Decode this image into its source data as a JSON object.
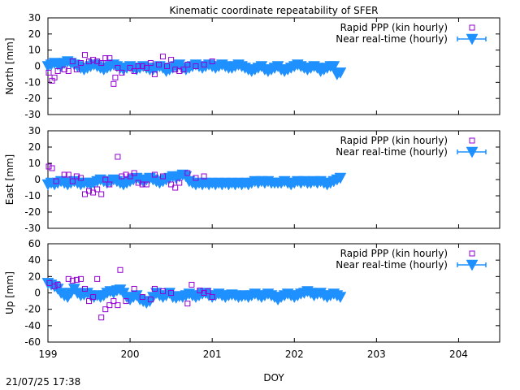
{
  "title": "Kinematic coordinate repeatability of SFER",
  "timestamp": "21/07/25 17:38",
  "xlabel": "DOY",
  "colors": {
    "rapid": "#9400d3",
    "nrt": "#1e90ff"
  },
  "chart_data": [
    {
      "type": "scatter",
      "ylabel": "North [mm]",
      "ylim": [
        -30,
        30
      ],
      "yticks": [
        -30,
        -20,
        -10,
        0,
        10,
        20,
        30
      ],
      "xlim": [
        199,
        204.5
      ],
      "xticks": [
        199,
        200,
        201,
        202,
        203,
        204
      ],
      "legend_position": "top-right",
      "series": [
        {
          "name": "Rapid PPP (kin hourly)",
          "marker": "open-square",
          "x": [
            199.01,
            199.05,
            199.08,
            199.12,
            199.2,
            199.25,
            199.3,
            199.35,
            199.4,
            199.45,
            199.5,
            199.55,
            199.6,
            199.65,
            199.7,
            199.75,
            199.8,
            199.82,
            199.85,
            199.9,
            200.0,
            200.05,
            200.1,
            200.15,
            200.2,
            200.25,
            200.3,
            200.35,
            200.4,
            200.45,
            200.5,
            200.55,
            200.6,
            200.65,
            200.7,
            200.8,
            200.9,
            201.0
          ],
          "y": [
            -4,
            -9,
            -7,
            -3,
            -2,
            -3,
            3,
            -2,
            2,
            7,
            3,
            4,
            3,
            2,
            5,
            5,
            -11,
            -7,
            -1,
            -4,
            -1,
            -3,
            0,
            0,
            -1,
            2,
            -5,
            1,
            6,
            0,
            4,
            -2,
            -3,
            -2,
            1,
            0,
            1,
            3
          ]
        },
        {
          "name": "Near real-time (hourly)",
          "marker": "filled-triangle-down",
          "x": [
            199.0,
            199.04,
            199.08,
            199.12,
            199.16,
            199.2,
            199.24,
            199.28,
            199.32,
            199.36,
            199.4,
            199.44,
            199.48,
            199.52,
            199.56,
            199.6,
            199.64,
            199.68,
            199.72,
            199.76,
            199.8,
            199.84,
            199.88,
            199.92,
            199.96,
            200.0,
            200.04,
            200.08,
            200.12,
            200.16,
            200.2,
            200.24,
            200.28,
            200.32,
            200.36,
            200.4,
            200.44,
            200.48,
            200.52,
            200.56,
            200.6,
            200.64,
            200.68,
            200.72,
            200.76,
            200.8,
            200.84,
            200.88,
            200.92,
            200.96,
            201.0,
            201.04,
            201.08,
            201.12,
            201.16,
            201.2,
            201.24,
            201.28,
            201.32,
            201.36,
            201.4,
            201.44,
            201.48,
            201.52,
            201.56,
            201.6,
            201.64,
            201.68,
            201.72,
            201.76,
            201.8,
            201.84,
            201.88,
            201.92,
            201.96,
            202.0,
            202.04,
            202.08,
            202.12,
            202.16,
            202.2,
            202.24,
            202.28,
            202.32,
            202.36,
            202.4,
            202.44,
            202.48,
            202.52,
            202.56
          ],
          "y": [
            0,
            1,
            2,
            1,
            0,
            2,
            3,
            2,
            1,
            0,
            -1,
            -2,
            -1,
            0,
            1,
            0,
            -1,
            -2,
            -1,
            0,
            1,
            0,
            -1,
            -2,
            -1,
            0,
            -1,
            -2,
            -1,
            0,
            -1,
            -2,
            -2,
            -1,
            0,
            -1,
            -3,
            -2,
            -1,
            0,
            1,
            -1,
            -2,
            -1,
            0,
            1,
            0,
            -1,
            0,
            1,
            0,
            -1,
            0,
            1,
            0,
            -1,
            -1,
            0,
            1,
            0,
            -1,
            -2,
            -3,
            -2,
            -1,
            0,
            -2,
            -3,
            -2,
            -1,
            0,
            -2,
            -3,
            -2,
            -1,
            0,
            1,
            0,
            -1,
            -2,
            -1,
            0,
            -1,
            -3,
            -2,
            -1,
            0,
            0,
            -5,
            -4
          ]
        }
      ]
    },
    {
      "type": "scatter",
      "ylabel": "East [mm]",
      "ylim": [
        -30,
        30
      ],
      "yticks": [
        -30,
        -20,
        -10,
        0,
        10,
        20,
        30
      ],
      "xlim": [
        199,
        204.5
      ],
      "xticks": [
        199,
        200,
        201,
        202,
        203,
        204
      ],
      "legend_position": "top-right",
      "series": [
        {
          "name": "Rapid PPP (kin hourly)",
          "marker": "open-square",
          "x": [
            199.01,
            199.05,
            199.1,
            199.2,
            199.25,
            199.3,
            199.35,
            199.4,
            199.45,
            199.5,
            199.55,
            199.6,
            199.65,
            199.7,
            199.75,
            199.85,
            199.9,
            199.95,
            200.0,
            200.05,
            200.1,
            200.15,
            200.2,
            200.3,
            200.4,
            200.5,
            200.55,
            200.6,
            200.7,
            200.8,
            200.9
          ],
          "y": [
            8,
            7,
            -1,
            3,
            3,
            -1,
            2,
            1,
            -9,
            -7,
            -8,
            -6,
            -9,
            0,
            -3,
            14,
            2,
            3,
            2,
            4,
            -2,
            -3,
            -3,
            3,
            2,
            -3,
            -5,
            -2,
            4,
            1,
            2
          ]
        },
        {
          "name": "Near real-time (hourly)",
          "marker": "filled-triangle-down",
          "x": [
            199.0,
            199.04,
            199.08,
            199.12,
            199.16,
            199.2,
            199.24,
            199.28,
            199.32,
            199.36,
            199.4,
            199.44,
            199.48,
            199.52,
            199.56,
            199.6,
            199.64,
            199.68,
            199.72,
            199.76,
            199.8,
            199.84,
            199.88,
            199.92,
            199.96,
            200.0,
            200.04,
            200.08,
            200.12,
            200.16,
            200.2,
            200.24,
            200.28,
            200.32,
            200.36,
            200.4,
            200.44,
            200.48,
            200.52,
            200.56,
            200.6,
            200.64,
            200.68,
            200.72,
            200.76,
            200.8,
            200.84,
            200.88,
            200.92,
            200.96,
            201.0,
            201.04,
            201.08,
            201.12,
            201.16,
            201.2,
            201.24,
            201.28,
            201.32,
            201.36,
            201.4,
            201.44,
            201.48,
            201.52,
            201.56,
            201.6,
            201.64,
            201.68,
            201.72,
            201.76,
            201.8,
            201.84,
            201.88,
            201.92,
            201.96,
            202.0,
            202.04,
            202.08,
            202.12,
            202.16,
            202.2,
            202.24,
            202.28,
            202.32,
            202.36,
            202.4,
            202.44,
            202.48,
            202.52,
            202.56
          ],
          "y": [
            -3,
            -2,
            -3,
            -2,
            -1,
            -2,
            -3,
            -2,
            -1,
            -2,
            -3,
            -2,
            -2,
            -3,
            -2,
            -1,
            0,
            -1,
            -2,
            -1,
            0,
            -1,
            -2,
            -3,
            -2,
            -1,
            0,
            1,
            0,
            -1,
            0,
            1,
            0,
            -1,
            -2,
            -1,
            0,
            1,
            2,
            1,
            2,
            3,
            2,
            -1,
            -2,
            -3,
            -2,
            -3,
            -2,
            -3,
            -2,
            -3,
            -2,
            -3,
            -2,
            -3,
            -2,
            -3,
            -2,
            -3,
            -2,
            -3,
            -2,
            -1,
            -2,
            -1,
            -2,
            -1,
            -2,
            -2,
            -2,
            -2,
            -1,
            -2,
            -3,
            -2,
            -1,
            -2,
            -1,
            -2,
            -2,
            -1,
            -2,
            -1,
            -2,
            -3,
            -2,
            -1,
            0,
            1
          ]
        }
      ]
    },
    {
      "type": "scatter",
      "ylabel": "Up [mm]",
      "ylim": [
        -60,
        60
      ],
      "yticks": [
        -60,
        -40,
        -20,
        0,
        20,
        40,
        60
      ],
      "xlim": [
        199,
        204.5
      ],
      "xticks": [
        199,
        200,
        201,
        202,
        203,
        204
      ],
      "legend_position": "top-right",
      "series": [
        {
          "name": "Rapid PPP (kin hourly)",
          "marker": "open-square",
          "x": [
            199.02,
            199.08,
            199.12,
            199.25,
            199.3,
            199.35,
            199.4,
            199.45,
            199.5,
            199.55,
            199.6,
            199.65,
            199.7,
            199.75,
            199.8,
            199.85,
            199.88,
            199.95,
            200.05,
            200.15,
            200.25,
            200.3,
            200.4,
            200.5,
            200.7,
            200.75,
            200.85,
            200.9,
            200.95,
            201.0
          ],
          "y": [
            12,
            8,
            10,
            17,
            15,
            16,
            17,
            5,
            -10,
            -5,
            17,
            -30,
            -20,
            -15,
            -10,
            -15,
            28,
            -10,
            5,
            -5,
            -8,
            5,
            2,
            0,
            -13,
            10,
            3,
            0,
            2,
            -5
          ]
        },
        {
          "name": "Near real-time (hourly)",
          "marker": "filled-triangle-down",
          "x": [
            199.0,
            199.04,
            199.08,
            199.12,
            199.16,
            199.2,
            199.24,
            199.28,
            199.32,
            199.36,
            199.4,
            199.44,
            199.48,
            199.52,
            199.56,
            199.6,
            199.64,
            199.68,
            199.72,
            199.76,
            199.8,
            199.84,
            199.88,
            199.92,
            199.96,
            200.0,
            200.04,
            200.08,
            200.12,
            200.16,
            200.2,
            200.24,
            200.28,
            200.32,
            200.36,
            200.4,
            200.44,
            200.48,
            200.52,
            200.56,
            200.6,
            200.64,
            200.68,
            200.72,
            200.76,
            200.8,
            200.84,
            200.88,
            200.92,
            200.96,
            201.0,
            201.04,
            201.08,
            201.12,
            201.16,
            201.2,
            201.24,
            201.28,
            201.32,
            201.36,
            201.4,
            201.44,
            201.48,
            201.52,
            201.56,
            201.6,
            201.64,
            201.68,
            201.72,
            201.76,
            201.8,
            201.84,
            201.88,
            201.92,
            201.96,
            202.0,
            202.04,
            202.08,
            202.12,
            202.16,
            202.2,
            202.24,
            202.28,
            202.32,
            202.36,
            202.4,
            202.44,
            202.48,
            202.52,
            202.56
          ],
          "y": [
            12,
            10,
            8,
            5,
            0,
            -3,
            -5,
            0,
            5,
            0,
            -3,
            -2,
            0,
            -3,
            -5,
            -3,
            -5,
            -3,
            0,
            2,
            0,
            3,
            4,
            0,
            -5,
            -8,
            -5,
            -3,
            -8,
            -10,
            -12,
            -10,
            -5,
            0,
            -3,
            -5,
            -3,
            0,
            -5,
            -6,
            -4,
            -5,
            -3,
            -1,
            -3,
            -5,
            -3,
            -1,
            0,
            -3,
            -5,
            -3,
            -1,
            -3,
            -5,
            -3,
            -2,
            -3,
            -5,
            -4,
            -3,
            -5,
            -3,
            -1,
            -3,
            -5,
            -3,
            -1,
            -3,
            -5,
            -8,
            -5,
            -3,
            -1,
            -3,
            -5,
            -3,
            -1,
            0,
            2,
            0,
            -3,
            -1,
            0,
            -3,
            -5,
            -3,
            -1,
            -3,
            -5
          ]
        }
      ]
    }
  ]
}
